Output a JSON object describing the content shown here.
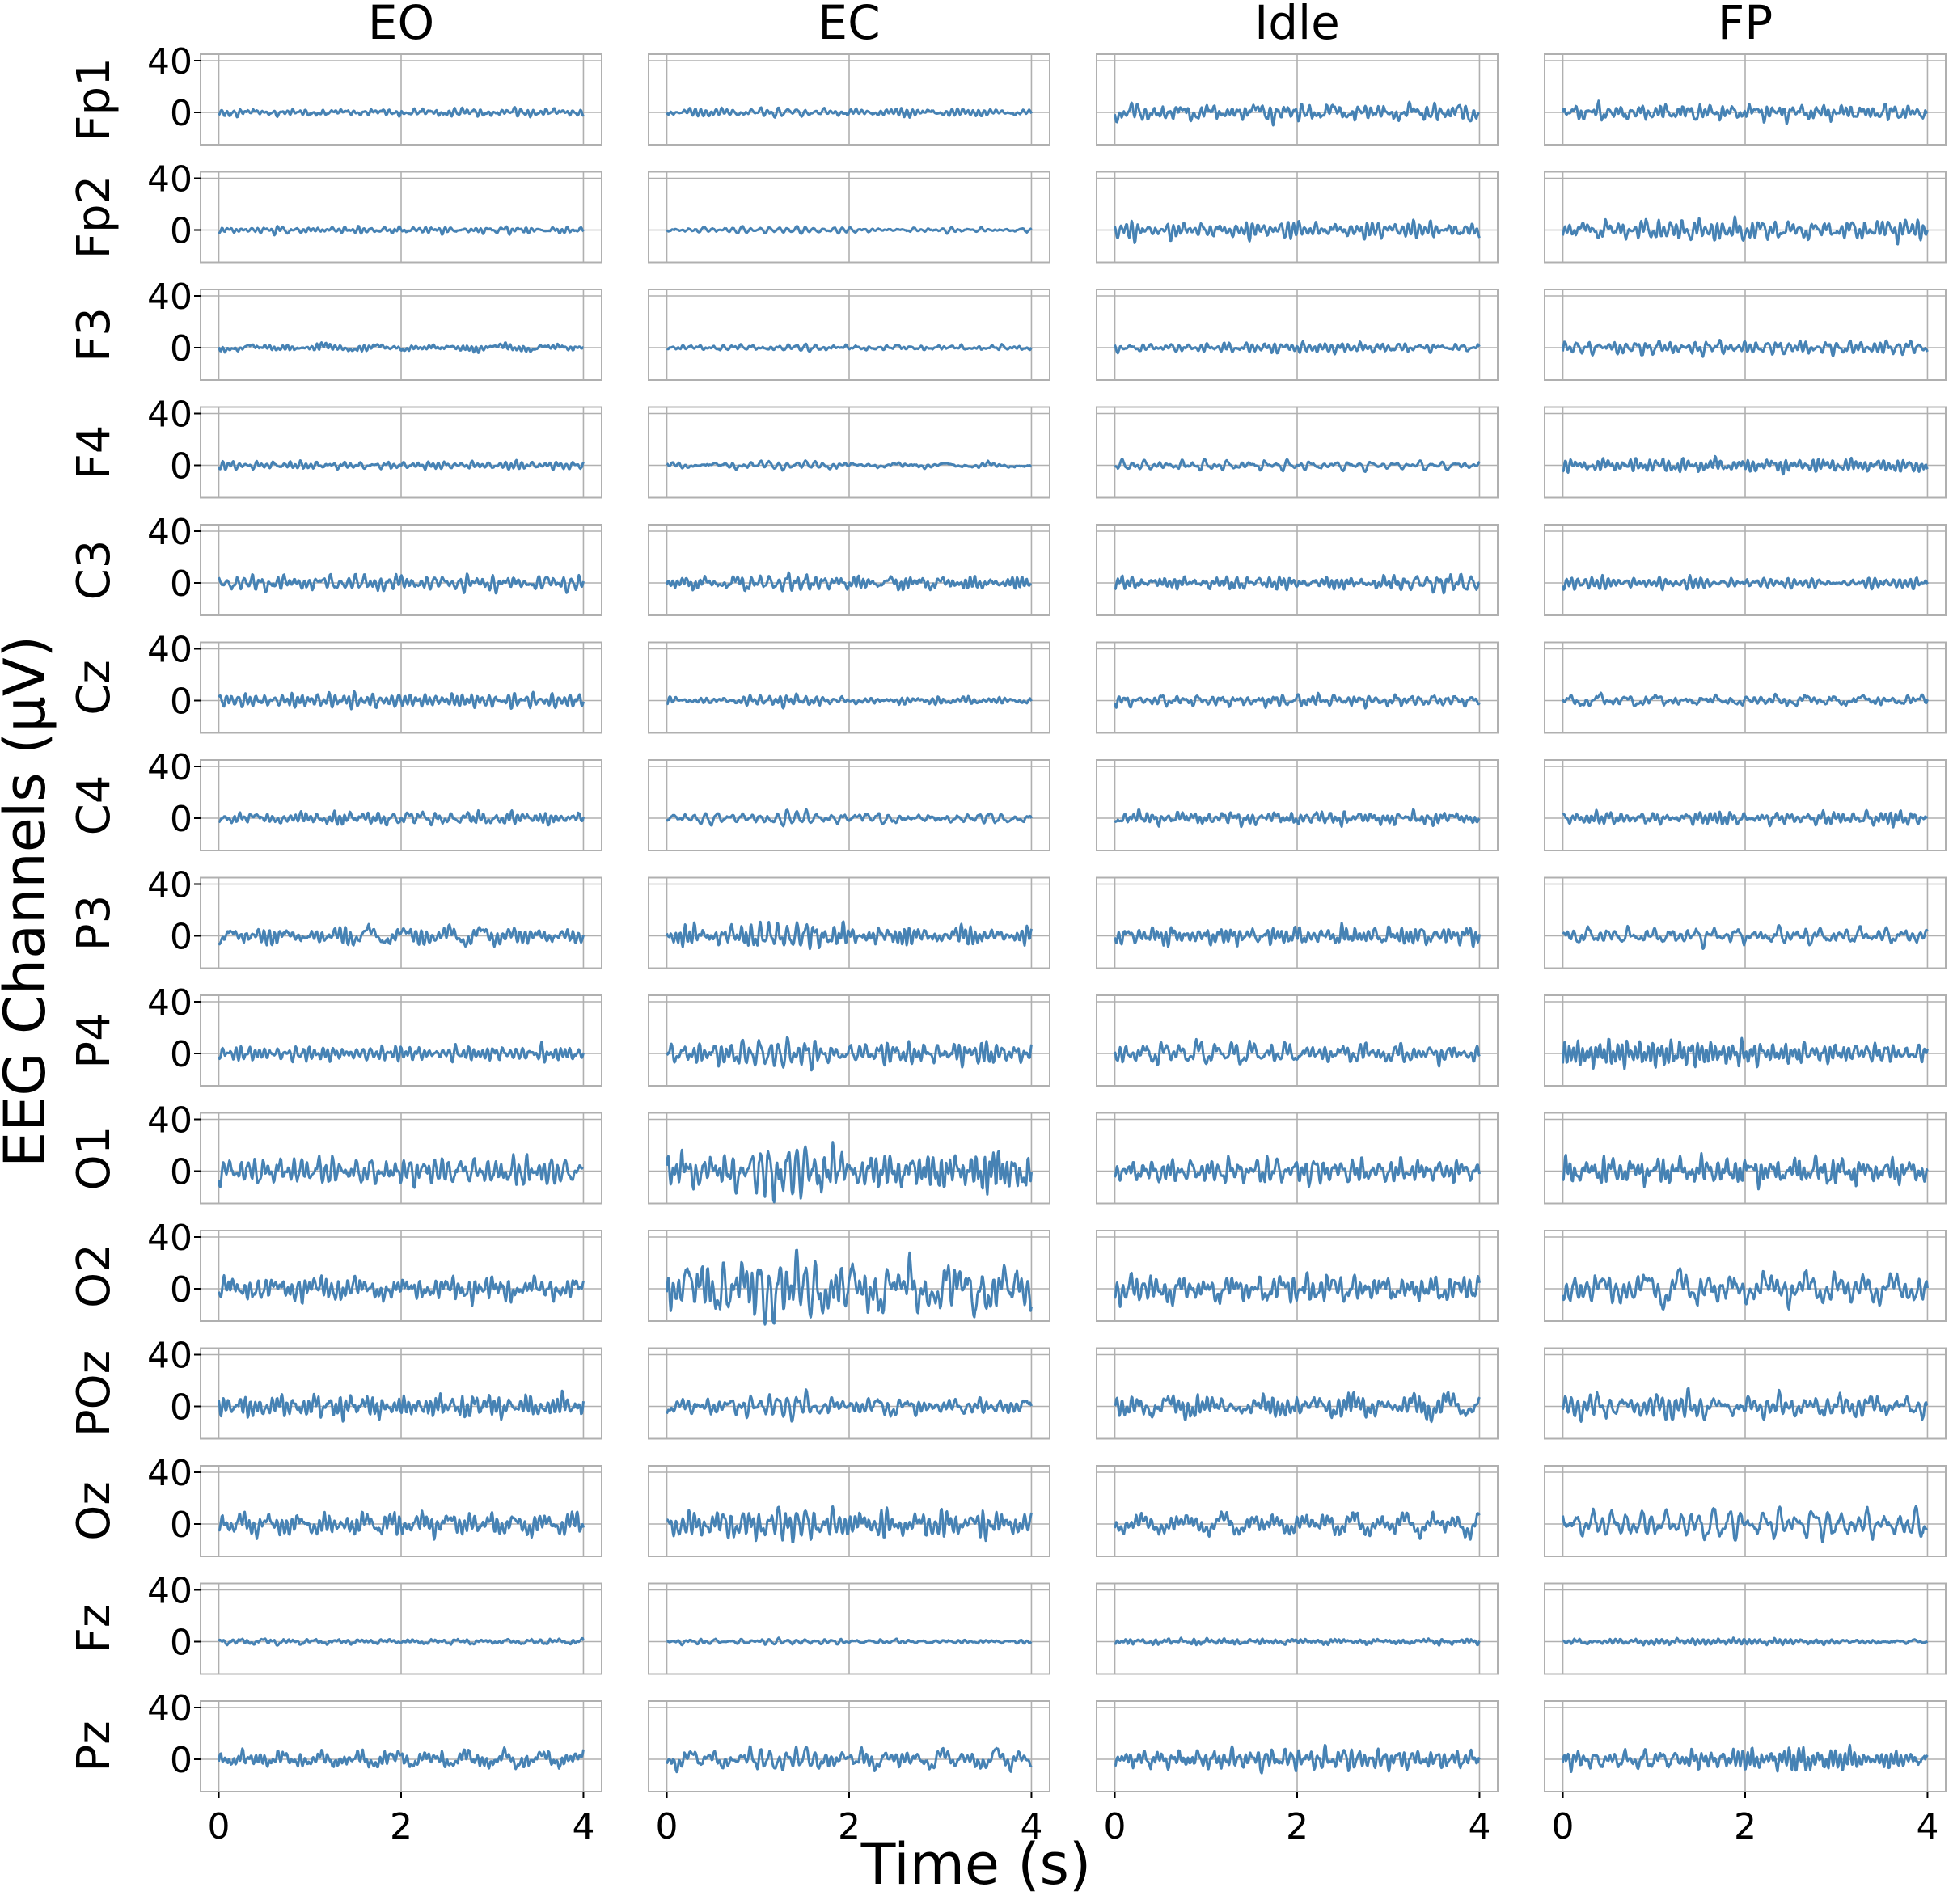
{
  "chart_data": {
    "type": "line",
    "conditions": [
      "EO",
      "EC",
      "Idle",
      "FP"
    ],
    "channels": [
      "Fp1",
      "Fp2",
      "F3",
      "F4",
      "C3",
      "Cz",
      "C4",
      "P3",
      "P4",
      "O1",
      "O2",
      "POz",
      "Oz",
      "Fz",
      "Pz"
    ],
    "xlabel": "Time (s)",
    "ylabel": "EEG Channels (μV)",
    "xlim": [
      -0.2,
      4.2
    ],
    "ylim": [
      -25,
      45
    ],
    "xticks": [
      0,
      2,
      4
    ],
    "xtick_labels": [
      "0",
      "2",
      "4"
    ],
    "yticks": [
      0,
      40
    ],
    "ytick_labels": [
      "0",
      "40"
    ],
    "grid": true,
    "line_color": "#4682b4",
    "duration_s": 4,
    "sample_count": 480,
    "amplitude_uV": {
      "EO": [
        4,
        4,
        4,
        4,
        8,
        7,
        6,
        9,
        9,
        13,
        13,
        12,
        12,
        3,
        9
      ],
      "EC": [
        4,
        3,
        3,
        4,
        8,
        6,
        7,
        11,
        13,
        24,
        30,
        13,
        14,
        3,
        10
      ],
      "Idle": [
        10,
        10,
        5,
        5,
        8,
        6,
        7,
        10,
        11,
        12,
        14,
        12,
        12,
        3,
        11
      ],
      "FP": [
        9,
        11,
        7,
        7,
        6,
        6,
        7,
        10,
        12,
        14,
        16,
        14,
        14,
        3,
        11
      ]
    }
  }
}
